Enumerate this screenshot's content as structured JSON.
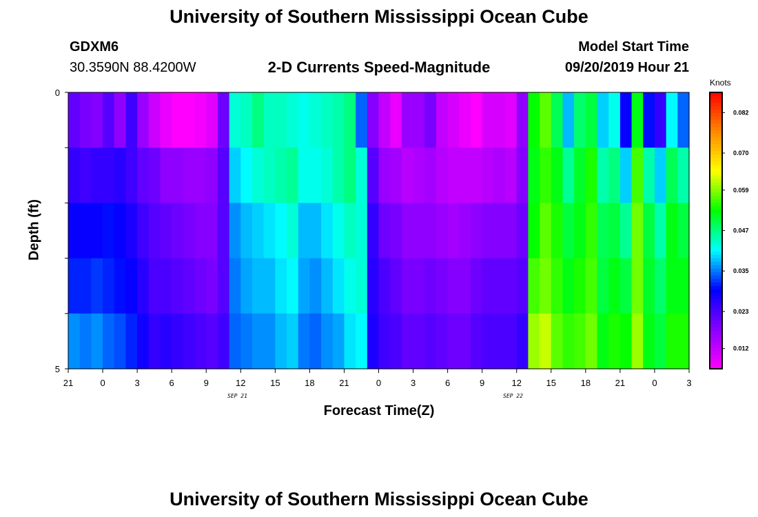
{
  "title": "University of Southern Mississippi Ocean Cube",
  "footer_title": "University of Southern Mississippi Ocean Cube",
  "station": {
    "id": "GDXM6",
    "location": "30.3590N 88.4200W"
  },
  "subtitle": "2-D Currents Speed-Magnitude",
  "model_start": {
    "label": "Model Start Time",
    "value": "09/20/2019 Hour 21"
  },
  "chart_data": {
    "type": "heatmap",
    "xlabel": "Forecast Time(Z)",
    "ylabel": "Depth (ft)",
    "x_tick_labels": [
      "21",
      "0",
      "3",
      "6",
      "9",
      "12",
      "15",
      "18",
      "21",
      "0",
      "3",
      "6",
      "9",
      "12",
      "15",
      "18",
      "21",
      "0",
      "3"
    ],
    "date_labels": [
      "SEP 21",
      "SEP 22"
    ],
    "y_tick_labels": [
      "0",
      "5"
    ],
    "ylim": [
      0,
      5
    ],
    "depth_layers": 5,
    "time_steps": 54,
    "colorbar": {
      "title": "Knots",
      "ticks": [
        "0.012",
        "0.023",
        "0.035",
        "0.047",
        "0.059",
        "0.070",
        "0.082"
      ],
      "range": [
        0.006,
        0.088
      ],
      "colors": [
        "#ff00ff",
        "#8800ff",
        "#0000ff",
        "#00ffff",
        "#00ff00",
        "#ffff00",
        "#ff8800",
        "#ff0000"
      ]
    },
    "values": [
      [
        0.021,
        0.019,
        0.018,
        0.022,
        0.017,
        0.024,
        0.016,
        0.011,
        0.008,
        0.006,
        0.006,
        0.007,
        0.009,
        0.02,
        0.043,
        0.044,
        0.047,
        0.044,
        0.044,
        0.043,
        0.042,
        0.043,
        0.044,
        0.045,
        0.047,
        0.034,
        0.018,
        0.012,
        0.008,
        0.016,
        0.016,
        0.019,
        0.012,
        0.01,
        0.008,
        0.006,
        0.01,
        0.01,
        0.009,
        0.017,
        0.053,
        0.057,
        0.049,
        0.038,
        0.048,
        0.05,
        0.039,
        0.042,
        0.029,
        0.052,
        0.03,
        0.025,
        0.041,
        0.034
      ],
      [
        0.025,
        0.024,
        0.025,
        0.025,
        0.026,
        0.024,
        0.021,
        0.02,
        0.017,
        0.017,
        0.016,
        0.016,
        0.017,
        0.022,
        0.039,
        0.041,
        0.043,
        0.044,
        0.045,
        0.046,
        0.042,
        0.042,
        0.043,
        0.045,
        0.047,
        0.043,
        0.022,
        0.016,
        0.015,
        0.013,
        0.014,
        0.015,
        0.013,
        0.012,
        0.012,
        0.012,
        0.013,
        0.014,
        0.013,
        0.018,
        0.052,
        0.055,
        0.052,
        0.046,
        0.051,
        0.054,
        0.045,
        0.047,
        0.039,
        0.056,
        0.045,
        0.039,
        0.049,
        0.045
      ],
      [
        0.029,
        0.029,
        0.029,
        0.03,
        0.029,
        0.027,
        0.024,
        0.022,
        0.021,
        0.02,
        0.019,
        0.018,
        0.018,
        0.022,
        0.036,
        0.038,
        0.039,
        0.04,
        0.041,
        0.043,
        0.038,
        0.038,
        0.04,
        0.042,
        0.044,
        0.043,
        0.025,
        0.02,
        0.019,
        0.017,
        0.017,
        0.017,
        0.016,
        0.015,
        0.016,
        0.017,
        0.018,
        0.018,
        0.018,
        0.02,
        0.053,
        0.057,
        0.054,
        0.05,
        0.052,
        0.055,
        0.049,
        0.05,
        0.046,
        0.058,
        0.05,
        0.045,
        0.052,
        0.05
      ],
      [
        0.031,
        0.031,
        0.032,
        0.031,
        0.03,
        0.029,
        0.026,
        0.023,
        0.023,
        0.022,
        0.021,
        0.02,
        0.019,
        0.022,
        0.035,
        0.037,
        0.038,
        0.038,
        0.04,
        0.041,
        0.037,
        0.036,
        0.038,
        0.04,
        0.042,
        0.043,
        0.026,
        0.023,
        0.021,
        0.019,
        0.019,
        0.02,
        0.019,
        0.018,
        0.018,
        0.02,
        0.021,
        0.021,
        0.021,
        0.022,
        0.056,
        0.058,
        0.055,
        0.052,
        0.054,
        0.056,
        0.05,
        0.052,
        0.05,
        0.058,
        0.051,
        0.048,
        0.052,
        0.052
      ],
      [
        0.036,
        0.035,
        0.036,
        0.034,
        0.033,
        0.031,
        0.028,
        0.025,
        0.026,
        0.025,
        0.024,
        0.023,
        0.022,
        0.024,
        0.034,
        0.035,
        0.036,
        0.036,
        0.038,
        0.039,
        0.035,
        0.034,
        0.036,
        0.037,
        0.04,
        0.041,
        0.027,
        0.024,
        0.023,
        0.021,
        0.021,
        0.022,
        0.021,
        0.02,
        0.02,
        0.022,
        0.023,
        0.023,
        0.023,
        0.025,
        0.06,
        0.062,
        0.057,
        0.055,
        0.056,
        0.058,
        0.052,
        0.054,
        0.053,
        0.06,
        0.052,
        0.05,
        0.054,
        0.054
      ]
    ]
  }
}
